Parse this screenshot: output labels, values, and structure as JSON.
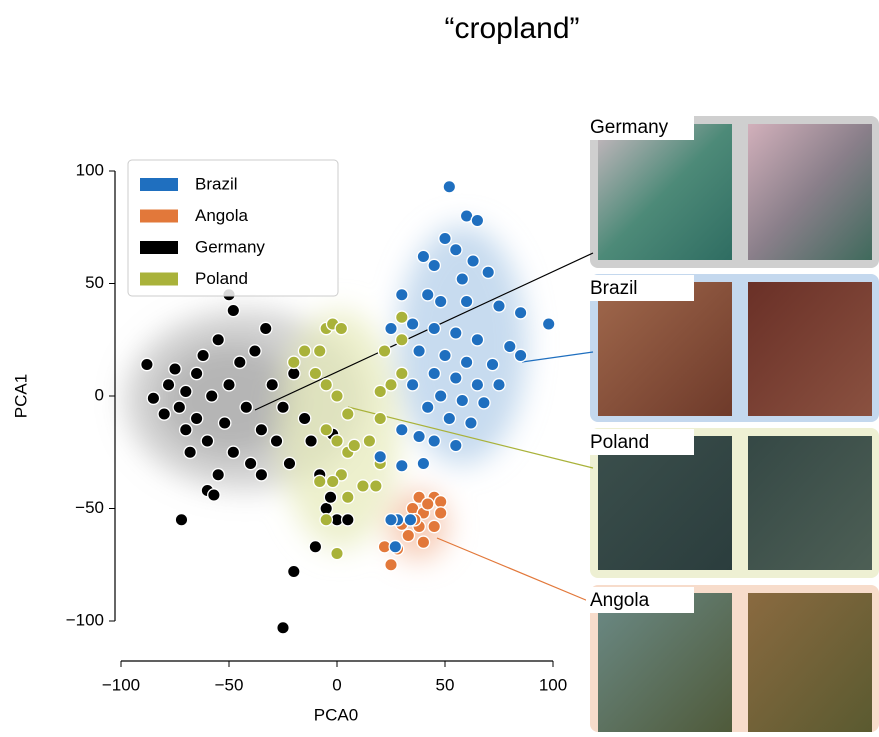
{
  "chart_data": {
    "type": "scatter",
    "title": "“cropland”",
    "xlabel": "PCA0",
    "ylabel": "PCA1",
    "xlim": [
      -100,
      100
    ],
    "ylim": [
      -100,
      100
    ],
    "xticks": [
      {
        "value": -100,
        "label": "−100"
      },
      {
        "value": -50,
        "label": "−50"
      },
      0,
      50,
      100
    ],
    "yticks": [
      {
        "value": -100,
        "label": "−100"
      },
      {
        "value": -50,
        "label": "−50"
      },
      0,
      50,
      100
    ],
    "legend": "upper left",
    "series": [
      {
        "name": "Brazil",
        "color": "#1f6fbf",
        "x": [
          52,
          60,
          65,
          50,
          55,
          40,
          63,
          45,
          70,
          58,
          30,
          42,
          48,
          60,
          75,
          85,
          98,
          25,
          35,
          45,
          55,
          65,
          80,
          38,
          50,
          60,
          72,
          85,
          45,
          55,
          65,
          75,
          35,
          48,
          58,
          68,
          42,
          52,
          62,
          45,
          55,
          30,
          20,
          30,
          40,
          38,
          28,
          27,
          34,
          25
        ],
        "values": [
          93,
          80,
          78,
          70,
          65,
          62,
          60,
          58,
          55,
          52,
          45,
          45,
          42,
          42,
          40,
          37,
          32,
          30,
          32,
          30,
          28,
          25,
          22,
          20,
          18,
          15,
          14,
          18,
          10,
          8,
          5,
          5,
          5,
          0,
          -2,
          -3,
          -5,
          -10,
          -12,
          -20,
          -22,
          -15,
          -27,
          -31,
          -30,
          -18,
          -55,
          -67,
          -55,
          -55
        ]
      },
      {
        "name": "Angola",
        "color": "#e2783a",
        "x": [
          38,
          45,
          48,
          35,
          40,
          48,
          30,
          38,
          45,
          33,
          40,
          22,
          28,
          25,
          42,
          36
        ],
        "values": [
          -45,
          -45,
          -47,
          -50,
          -52,
          -52,
          -57,
          -58,
          -58,
          -62,
          -65,
          -67,
          -68,
          -75,
          -48,
          -55
        ]
      },
      {
        "name": "Germany",
        "color": "#000000",
        "x": [
          -88,
          -85,
          -80,
          -78,
          -75,
          -73,
          -70,
          -70,
          -68,
          -65,
          -65,
          -62,
          -60,
          -58,
          -55,
          -55,
          -52,
          -50,
          -48,
          -45,
          -42,
          -40,
          -38,
          -35,
          -33,
          -30,
          -28,
          -25,
          -22,
          -20,
          -15,
          -12,
          -8,
          -5,
          -3,
          -60,
          -57,
          -72,
          -50,
          -48,
          -35,
          -20,
          -25,
          -10,
          0,
          5,
          -2
        ],
        "values": [
          14,
          -1,
          -8,
          5,
          12,
          -5,
          2,
          -15,
          -25,
          -10,
          10,
          18,
          -20,
          0,
          25,
          -35,
          -12,
          5,
          -25,
          15,
          -5,
          -30,
          20,
          -15,
          30,
          5,
          -20,
          -5,
          -30,
          10,
          -10,
          -20,
          -35,
          -50,
          -45,
          -42,
          -44,
          -55,
          45,
          38,
          -35,
          -78,
          -103,
          -67,
          -55,
          -55,
          -17
        ]
      },
      {
        "name": "Poland",
        "color": "#a9b23a",
        "x": [
          -20,
          -15,
          -8,
          -5,
          -2,
          2,
          -10,
          -5,
          0,
          5,
          -5,
          0,
          5,
          2,
          -8,
          -2,
          5,
          -5,
          0,
          12,
          18,
          20,
          15,
          20,
          20,
          25,
          30,
          22,
          30,
          30,
          8
        ],
        "values": [
          15,
          20,
          20,
          30,
          32,
          30,
          10,
          5,
          0,
          -8,
          -15,
          -20,
          -25,
          -35,
          -38,
          -38,
          -45,
          -55,
          -70,
          -40,
          -40,
          -30,
          -20,
          -10,
          2,
          5,
          10,
          20,
          25,
          35,
          -22
        ]
      }
    ]
  },
  "panels": [
    "Germany",
    "Brazil",
    "Poland",
    "Angola"
  ]
}
